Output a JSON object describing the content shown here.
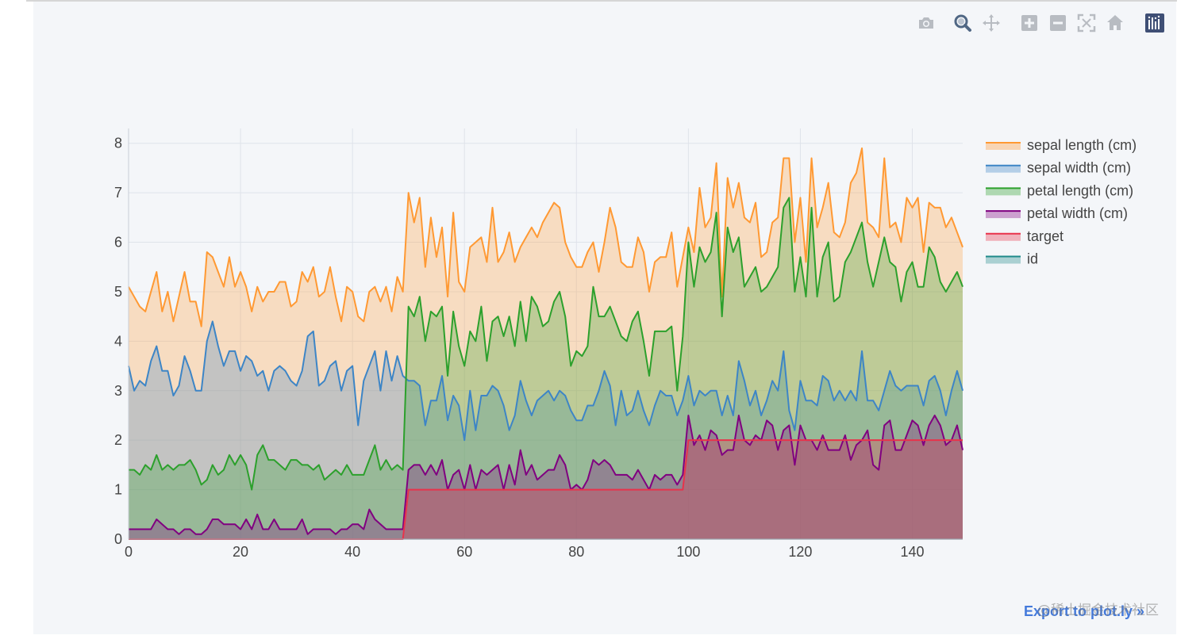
{
  "toolbar": {
    "buttons": [
      {
        "name": "camera-icon",
        "label": "Download plot as a png"
      },
      {
        "name": "zoom-icon",
        "label": "Zoom"
      },
      {
        "name": "pan-icon",
        "label": "Pan"
      },
      {
        "name": "zoom-in-icon",
        "label": "Zoom in"
      },
      {
        "name": "zoom-out-icon",
        "label": "Zoom out"
      },
      {
        "name": "autoscale-icon",
        "label": "Autoscale"
      },
      {
        "name": "home-icon",
        "label": "Reset axes"
      },
      {
        "name": "plotly-logo-icon",
        "label": "Produced with Plotly"
      }
    ]
  },
  "export_label": "Export to plot.ly »",
  "watermark": "@稀土掘金技术社区",
  "colors": {
    "sepal_length": "#ff9933",
    "sepal_width": "#3d85c6",
    "petal_length": "#2ca02c",
    "petal_width": "#800080",
    "target": "#e8334b",
    "id": "#1f8a8a"
  },
  "chart_data": {
    "type": "area",
    "title": "",
    "xlabel": "",
    "ylabel": "",
    "xlim": [
      0,
      149
    ],
    "ylim": [
      0,
      8.3
    ],
    "x_ticks": [
      0,
      20,
      40,
      60,
      80,
      100,
      120,
      140
    ],
    "y_ticks": [
      0,
      1,
      2,
      3,
      4,
      5,
      6,
      7,
      8
    ],
    "grid": true,
    "legend_position": "right",
    "series": [
      {
        "name": "sepal length (cm)",
        "key": "sepal_length",
        "values": [
          5.1,
          4.9,
          4.7,
          4.6,
          5.0,
          5.4,
          4.6,
          5.0,
          4.4,
          4.9,
          5.4,
          4.8,
          4.8,
          4.3,
          5.8,
          5.7,
          5.4,
          5.1,
          5.7,
          5.1,
          5.4,
          5.1,
          4.6,
          5.1,
          4.8,
          5.0,
          5.0,
          5.2,
          5.2,
          4.7,
          4.8,
          5.4,
          5.2,
          5.5,
          4.9,
          5.0,
          5.5,
          4.9,
          4.4,
          5.1,
          5.0,
          4.5,
          4.4,
          5.0,
          5.1,
          4.8,
          5.1,
          4.6,
          5.3,
          5.0,
          7.0,
          6.4,
          6.9,
          5.5,
          6.5,
          5.7,
          6.3,
          4.9,
          6.6,
          5.2,
          5.0,
          5.9,
          6.0,
          6.1,
          5.6,
          6.7,
          5.6,
          5.8,
          6.2,
          5.6,
          5.9,
          6.1,
          6.3,
          6.1,
          6.4,
          6.6,
          6.8,
          6.7,
          6.0,
          5.7,
          5.5,
          5.5,
          5.8,
          6.0,
          5.4,
          6.0,
          6.7,
          6.3,
          5.6,
          5.5,
          5.5,
          6.1,
          5.8,
          5.0,
          5.6,
          5.7,
          5.7,
          6.2,
          5.1,
          5.7,
          6.3,
          5.8,
          7.1,
          6.3,
          6.5,
          7.6,
          4.9,
          7.3,
          6.7,
          7.2,
          6.5,
          6.4,
          6.8,
          5.7,
          5.8,
          6.4,
          6.5,
          7.7,
          7.7,
          6.0,
          6.9,
          5.6,
          7.7,
          6.3,
          6.7,
          7.2,
          6.2,
          6.1,
          6.4,
          7.2,
          7.4,
          7.9,
          6.4,
          6.3,
          6.1,
          7.7,
          6.3,
          6.4,
          6.0,
          6.9,
          6.7,
          6.9,
          5.8,
          6.8,
          6.7,
          6.7,
          6.3,
          6.5,
          6.2,
          5.9
        ]
      },
      {
        "name": "sepal width (cm)",
        "key": "sepal_width",
        "values": [
          3.5,
          3.0,
          3.2,
          3.1,
          3.6,
          3.9,
          3.4,
          3.4,
          2.9,
          3.1,
          3.7,
          3.4,
          3.0,
          3.0,
          4.0,
          4.4,
          3.9,
          3.5,
          3.8,
          3.8,
          3.4,
          3.7,
          3.6,
          3.3,
          3.4,
          3.0,
          3.4,
          3.5,
          3.4,
          3.2,
          3.1,
          3.4,
          4.1,
          4.2,
          3.1,
          3.2,
          3.5,
          3.6,
          3.0,
          3.4,
          3.5,
          2.3,
          3.2,
          3.5,
          3.8,
          3.0,
          3.8,
          3.2,
          3.7,
          3.3,
          3.2,
          3.2,
          3.1,
          2.3,
          2.8,
          2.8,
          3.3,
          2.4,
          2.9,
          2.7,
          2.0,
          3.0,
          2.2,
          2.9,
          2.9,
          3.1,
          3.0,
          2.7,
          2.2,
          2.5,
          3.2,
          2.8,
          2.5,
          2.8,
          2.9,
          3.0,
          2.8,
          3.0,
          2.9,
          2.6,
          2.4,
          2.4,
          2.7,
          2.7,
          3.0,
          3.4,
          3.1,
          2.3,
          3.0,
          2.5,
          2.6,
          3.0,
          2.6,
          2.3,
          2.7,
          3.0,
          2.9,
          2.9,
          2.5,
          2.8,
          3.3,
          2.7,
          3.0,
          2.9,
          3.0,
          3.0,
          2.5,
          2.9,
          2.5,
          3.6,
          3.2,
          2.7,
          3.0,
          2.5,
          2.8,
          3.2,
          3.0,
          3.8,
          2.6,
          2.2,
          3.2,
          2.8,
          2.8,
          2.7,
          3.3,
          3.2,
          2.8,
          3.0,
          2.8,
          3.0,
          2.8,
          3.8,
          2.8,
          2.8,
          2.6,
          3.0,
          3.4,
          3.1,
          3.0,
          3.1,
          3.1,
          3.1,
          2.7,
          3.2,
          3.3,
          3.0,
          2.5,
          3.0,
          3.4,
          3.0
        ]
      },
      {
        "name": "petal length (cm)",
        "key": "petal_length",
        "values": [
          1.4,
          1.4,
          1.3,
          1.5,
          1.4,
          1.7,
          1.4,
          1.5,
          1.4,
          1.5,
          1.5,
          1.6,
          1.4,
          1.1,
          1.2,
          1.5,
          1.3,
          1.4,
          1.7,
          1.5,
          1.7,
          1.5,
          1.0,
          1.7,
          1.9,
          1.6,
          1.6,
          1.5,
          1.4,
          1.6,
          1.6,
          1.5,
          1.5,
          1.4,
          1.5,
          1.2,
          1.3,
          1.4,
          1.3,
          1.5,
          1.3,
          1.3,
          1.3,
          1.6,
          1.9,
          1.4,
          1.6,
          1.4,
          1.5,
          1.4,
          4.7,
          4.5,
          4.9,
          4.0,
          4.6,
          4.5,
          4.7,
          3.3,
          4.6,
          3.9,
          3.5,
          4.2,
          4.0,
          4.7,
          3.6,
          4.4,
          4.5,
          4.1,
          4.5,
          3.9,
          4.8,
          4.0,
          4.9,
          4.7,
          4.3,
          4.4,
          4.8,
          5.0,
          4.5,
          3.5,
          3.8,
          3.7,
          3.9,
          5.1,
          4.5,
          4.5,
          4.7,
          4.4,
          4.1,
          4.0,
          4.4,
          4.6,
          4.0,
          3.3,
          4.2,
          4.2,
          4.2,
          4.3,
          3.0,
          4.1,
          6.0,
          5.1,
          5.9,
          5.6,
          5.8,
          6.6,
          4.5,
          6.3,
          5.8,
          6.1,
          5.1,
          5.3,
          5.5,
          5.0,
          5.1,
          5.3,
          5.5,
          6.7,
          6.9,
          5.0,
          5.7,
          4.9,
          6.7,
          4.9,
          5.7,
          6.0,
          4.8,
          4.9,
          5.6,
          5.8,
          6.1,
          6.4,
          5.6,
          5.1,
          5.6,
          6.1,
          5.6,
          5.5,
          4.8,
          5.4,
          5.6,
          5.1,
          5.1,
          5.9,
          5.7,
          5.2,
          5.0,
          5.2,
          5.4,
          5.1
        ]
      },
      {
        "name": "petal width (cm)",
        "key": "petal_width",
        "values": [
          0.2,
          0.2,
          0.2,
          0.2,
          0.2,
          0.4,
          0.3,
          0.2,
          0.2,
          0.1,
          0.2,
          0.2,
          0.1,
          0.1,
          0.2,
          0.4,
          0.4,
          0.3,
          0.3,
          0.3,
          0.2,
          0.4,
          0.2,
          0.5,
          0.2,
          0.2,
          0.4,
          0.2,
          0.2,
          0.2,
          0.2,
          0.4,
          0.1,
          0.2,
          0.2,
          0.2,
          0.2,
          0.1,
          0.2,
          0.2,
          0.3,
          0.3,
          0.2,
          0.6,
          0.4,
          0.3,
          0.2,
          0.2,
          0.2,
          0.2,
          1.4,
          1.5,
          1.5,
          1.3,
          1.5,
          1.3,
          1.6,
          1.0,
          1.3,
          1.4,
          1.0,
          1.5,
          1.0,
          1.4,
          1.3,
          1.4,
          1.5,
          1.0,
          1.5,
          1.1,
          1.8,
          1.3,
          1.5,
          1.2,
          1.3,
          1.4,
          1.4,
          1.7,
          1.5,
          1.0,
          1.1,
          1.0,
          1.2,
          1.6,
          1.5,
          1.6,
          1.5,
          1.3,
          1.3,
          1.3,
          1.2,
          1.4,
          1.2,
          1.0,
          1.3,
          1.2,
          1.3,
          1.3,
          1.1,
          1.3,
          2.5,
          1.9,
          2.1,
          1.8,
          2.2,
          2.1,
          1.7,
          1.8,
          1.8,
          2.5,
          2.0,
          1.9,
          2.1,
          2.0,
          2.4,
          2.3,
          1.8,
          2.2,
          2.3,
          1.5,
          2.3,
          2.0,
          2.0,
          1.8,
          2.1,
          1.8,
          1.8,
          1.8,
          2.1,
          1.6,
          1.9,
          2.0,
          2.2,
          1.5,
          1.4,
          2.3,
          2.4,
          1.8,
          1.8,
          2.1,
          2.4,
          2.3,
          1.9,
          2.3,
          2.5,
          2.3,
          1.9,
          2.0,
          2.3,
          1.8
        ]
      },
      {
        "name": "target",
        "key": "target",
        "values": [
          0,
          0,
          0,
          0,
          0,
          0,
          0,
          0,
          0,
          0,
          0,
          0,
          0,
          0,
          0,
          0,
          0,
          0,
          0,
          0,
          0,
          0,
          0,
          0,
          0,
          0,
          0,
          0,
          0,
          0,
          0,
          0,
          0,
          0,
          0,
          0,
          0,
          0,
          0,
          0,
          0,
          0,
          0,
          0,
          0,
          0,
          0,
          0,
          0,
          0,
          1,
          1,
          1,
          1,
          1,
          1,
          1,
          1,
          1,
          1,
          1,
          1,
          1,
          1,
          1,
          1,
          1,
          1,
          1,
          1,
          1,
          1,
          1,
          1,
          1,
          1,
          1,
          1,
          1,
          1,
          1,
          1,
          1,
          1,
          1,
          1,
          1,
          1,
          1,
          1,
          1,
          1,
          1,
          1,
          1,
          1,
          1,
          1,
          1,
          1,
          2,
          2,
          2,
          2,
          2,
          2,
          2,
          2,
          2,
          2,
          2,
          2,
          2,
          2,
          2,
          2,
          2,
          2,
          2,
          2,
          2,
          2,
          2,
          2,
          2,
          2,
          2,
          2,
          2,
          2,
          2,
          2,
          2,
          2,
          2,
          2,
          2,
          2,
          2,
          2,
          2,
          2,
          2,
          2,
          2,
          2,
          2,
          2,
          2,
          2
        ]
      },
      {
        "name": "id",
        "key": "id",
        "values": []
      }
    ]
  }
}
